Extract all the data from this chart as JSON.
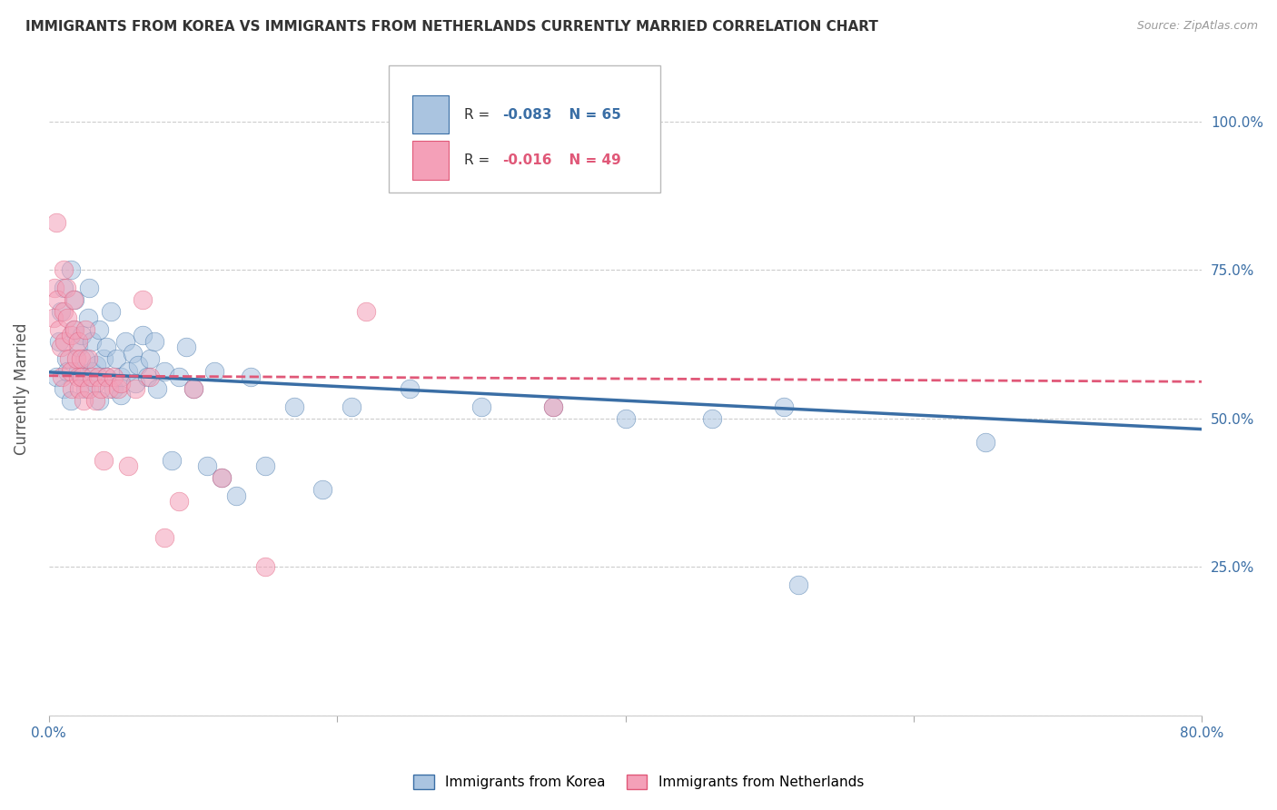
{
  "title": "IMMIGRANTS FROM KOREA VS IMMIGRANTS FROM NETHERLANDS CURRENTLY MARRIED CORRELATION CHART",
  "source": "Source: ZipAtlas.com",
  "ylabel": "Currently Married",
  "legend_korea": "Immigrants from Korea",
  "legend_netherlands": "Immigrants from Netherlands",
  "r_korea": -0.083,
  "n_korea": 65,
  "r_netherlands": -0.016,
  "n_netherlands": 49,
  "xlim": [
    0.0,
    0.8
  ],
  "ylim": [
    0.0,
    1.1
  ],
  "yticks": [
    0.0,
    0.25,
    0.5,
    0.75,
    1.0
  ],
  "ytick_labels": [
    "",
    "25.0%",
    "50.0%",
    "75.0%",
    "100.0%"
  ],
  "xticks": [
    0.0,
    0.2,
    0.4,
    0.6,
    0.8
  ],
  "xtick_labels": [
    "0.0%",
    "",
    "",
    "",
    "80.0%"
  ],
  "color_korea": "#aac4e0",
  "color_netherlands": "#f4a0b8",
  "line_color_korea": "#3a6ea5",
  "line_color_netherlands": "#e05878",
  "background_color": "#ffffff",
  "axis_label_color": "#3a6ea5",
  "korea_x": [
    0.005,
    0.007,
    0.008,
    0.01,
    0.01,
    0.012,
    0.013,
    0.015,
    0.015,
    0.017,
    0.018,
    0.02,
    0.02,
    0.022,
    0.023,
    0.025,
    0.025,
    0.027,
    0.028,
    0.03,
    0.03,
    0.032,
    0.033,
    0.035,
    0.035,
    0.038,
    0.04,
    0.04,
    0.043,
    0.045,
    0.047,
    0.05,
    0.05,
    0.053,
    0.055,
    0.058,
    0.06,
    0.062,
    0.065,
    0.068,
    0.07,
    0.073,
    0.075,
    0.08,
    0.085,
    0.09,
    0.095,
    0.1,
    0.11,
    0.115,
    0.12,
    0.13,
    0.14,
    0.15,
    0.17,
    0.19,
    0.21,
    0.25,
    0.3,
    0.35,
    0.4,
    0.46,
    0.51,
    0.52,
    0.65
  ],
  "korea_y": [
    0.57,
    0.63,
    0.68,
    0.55,
    0.72,
    0.6,
    0.58,
    0.75,
    0.53,
    0.65,
    0.7,
    0.58,
    0.62,
    0.57,
    0.64,
    0.6,
    0.55,
    0.67,
    0.72,
    0.58,
    0.63,
    0.56,
    0.59,
    0.65,
    0.53,
    0.6,
    0.57,
    0.62,
    0.68,
    0.55,
    0.6,
    0.57,
    0.54,
    0.63,
    0.58,
    0.61,
    0.56,
    0.59,
    0.64,
    0.57,
    0.6,
    0.63,
    0.55,
    0.58,
    0.43,
    0.57,
    0.62,
    0.55,
    0.42,
    0.58,
    0.4,
    0.37,
    0.57,
    0.42,
    0.52,
    0.38,
    0.52,
    0.55,
    0.52,
    0.52,
    0.5,
    0.5,
    0.52,
    0.22,
    0.46
  ],
  "netherlands_x": [
    0.003,
    0.004,
    0.005,
    0.006,
    0.007,
    0.008,
    0.009,
    0.01,
    0.01,
    0.011,
    0.012,
    0.013,
    0.014,
    0.015,
    0.015,
    0.016,
    0.017,
    0.018,
    0.019,
    0.02,
    0.02,
    0.021,
    0.022,
    0.023,
    0.024,
    0.025,
    0.027,
    0.028,
    0.03,
    0.032,
    0.034,
    0.036,
    0.038,
    0.04,
    0.042,
    0.045,
    0.048,
    0.05,
    0.055,
    0.06,
    0.065,
    0.07,
    0.08,
    0.09,
    0.1,
    0.12,
    0.15,
    0.22,
    0.35
  ],
  "netherlands_y": [
    0.67,
    0.72,
    0.83,
    0.7,
    0.65,
    0.62,
    0.57,
    0.75,
    0.68,
    0.63,
    0.72,
    0.67,
    0.6,
    0.64,
    0.58,
    0.55,
    0.7,
    0.65,
    0.6,
    0.57,
    0.63,
    0.55,
    0.6,
    0.57,
    0.53,
    0.65,
    0.6,
    0.55,
    0.57,
    0.53,
    0.57,
    0.55,
    0.43,
    0.57,
    0.55,
    0.57,
    0.55,
    0.56,
    0.42,
    0.55,
    0.7,
    0.57,
    0.3,
    0.36,
    0.55,
    0.4,
    0.25,
    0.68,
    0.52
  ],
  "korea_trend_x": [
    0.0,
    0.8
  ],
  "korea_trend_y": [
    0.578,
    0.482
  ],
  "netherlands_trend_x": [
    0.0,
    0.8
  ],
  "netherlands_trend_y": [
    0.572,
    0.562
  ]
}
